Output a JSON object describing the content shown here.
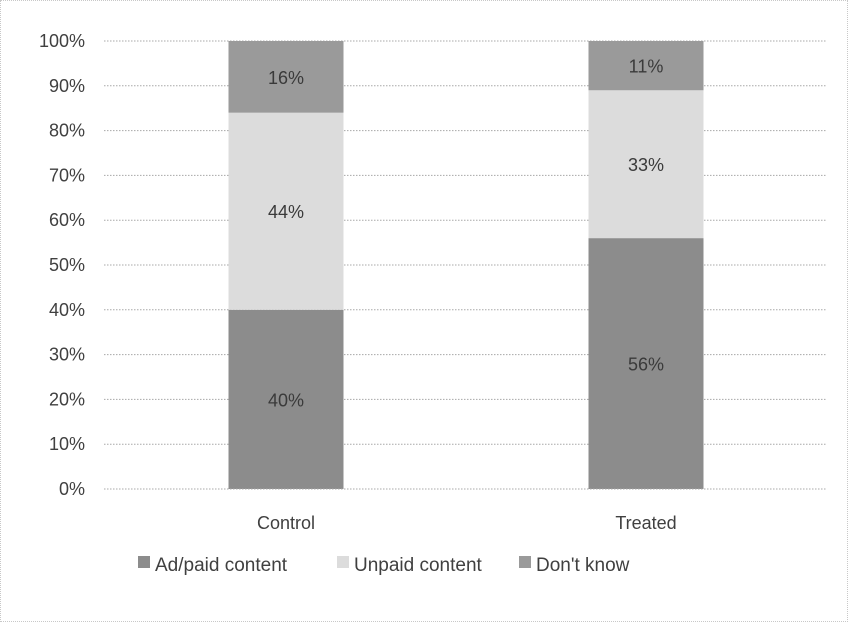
{
  "chart_data": {
    "type": "bar",
    "stacked": true,
    "categories": [
      "Control",
      "Treated"
    ],
    "series": [
      {
        "name": "Ad/paid content",
        "values": [
          40,
          56
        ],
        "labels": [
          "40%",
          "56%"
        ],
        "color": "#8c8c8c"
      },
      {
        "name": "Unpaid content",
        "values": [
          44,
          33
        ],
        "labels": [
          "44%",
          "33%"
        ],
        "color": "#dcdcdc"
      },
      {
        "name": "Don't know",
        "values": [
          16,
          11
        ],
        "labels": [
          "16%",
          "11%"
        ],
        "color": "#9a9a9a"
      }
    ],
    "y_ticks": [
      "0%",
      "10%",
      "20%",
      "30%",
      "40%",
      "50%",
      "60%",
      "70%",
      "80%",
      "90%",
      "100%"
    ],
    "ylim": [
      0,
      100
    ],
    "grid": true,
    "legend_position": "bottom"
  }
}
